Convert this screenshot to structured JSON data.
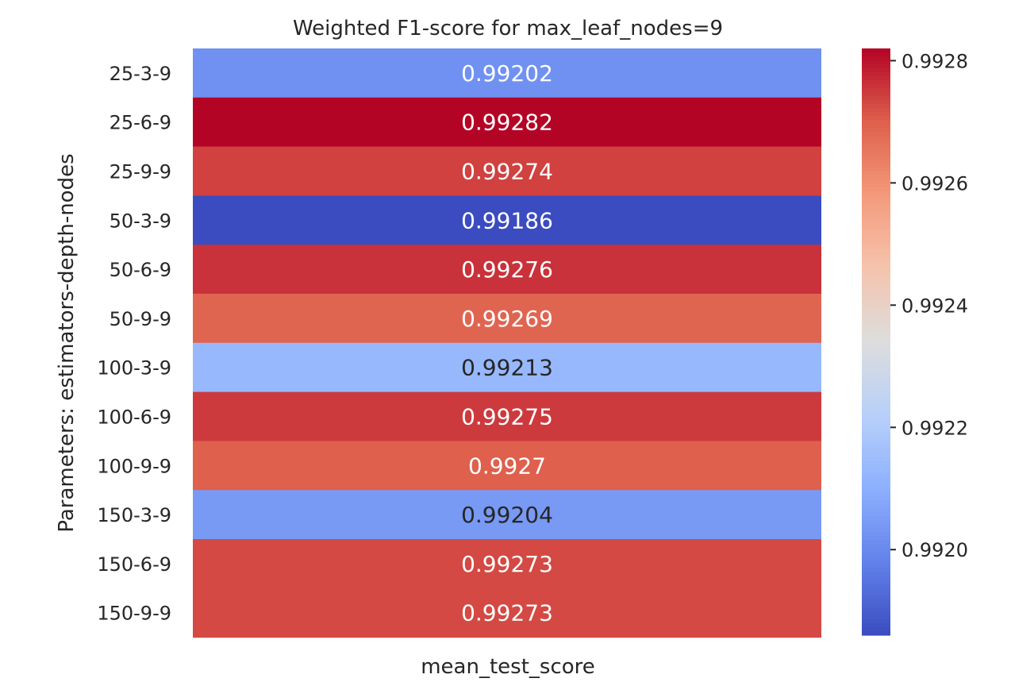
{
  "chart_data": {
    "type": "heatmap",
    "title": "Weighted F1-score for max_leaf_nodes=9",
    "xlabel": "mean_test_score",
    "ylabel": "Parameters: estimators-depth-nodes",
    "columns": [
      "mean_test_score"
    ],
    "rows": [
      "25-3-9",
      "25-6-9",
      "25-9-9",
      "50-3-9",
      "50-6-9",
      "50-9-9",
      "100-3-9",
      "100-6-9",
      "100-9-9",
      "150-3-9",
      "150-6-9",
      "150-9-9"
    ],
    "values": [
      0.99202,
      0.99282,
      0.99274,
      0.99186,
      0.99276,
      0.99269,
      0.99213,
      0.99275,
      0.9927,
      0.99204,
      0.99273,
      0.99273
    ],
    "value_labels": [
      "0.99202",
      "0.99282",
      "0.99274",
      "0.99186",
      "0.99276",
      "0.99269",
      "0.99213",
      "0.99275",
      "0.9927",
      "0.99204",
      "0.99273",
      "0.99273"
    ],
    "colormap": "coolwarm",
    "colorbar": {
      "min": 0.99186,
      "max": 0.99282,
      "ticks": [
        0.992,
        0.9922,
        0.9924,
        0.9926,
        0.9928
      ],
      "tick_labels": [
        "0.9920",
        "0.9922",
        "0.9924",
        "0.9926",
        "0.9928"
      ]
    },
    "colors": {
      "low": "#3b4cc0",
      "mid": "#dddddd",
      "high": "#b40426",
      "text_light": "#ffffff",
      "text_dark": "#262626"
    }
  }
}
